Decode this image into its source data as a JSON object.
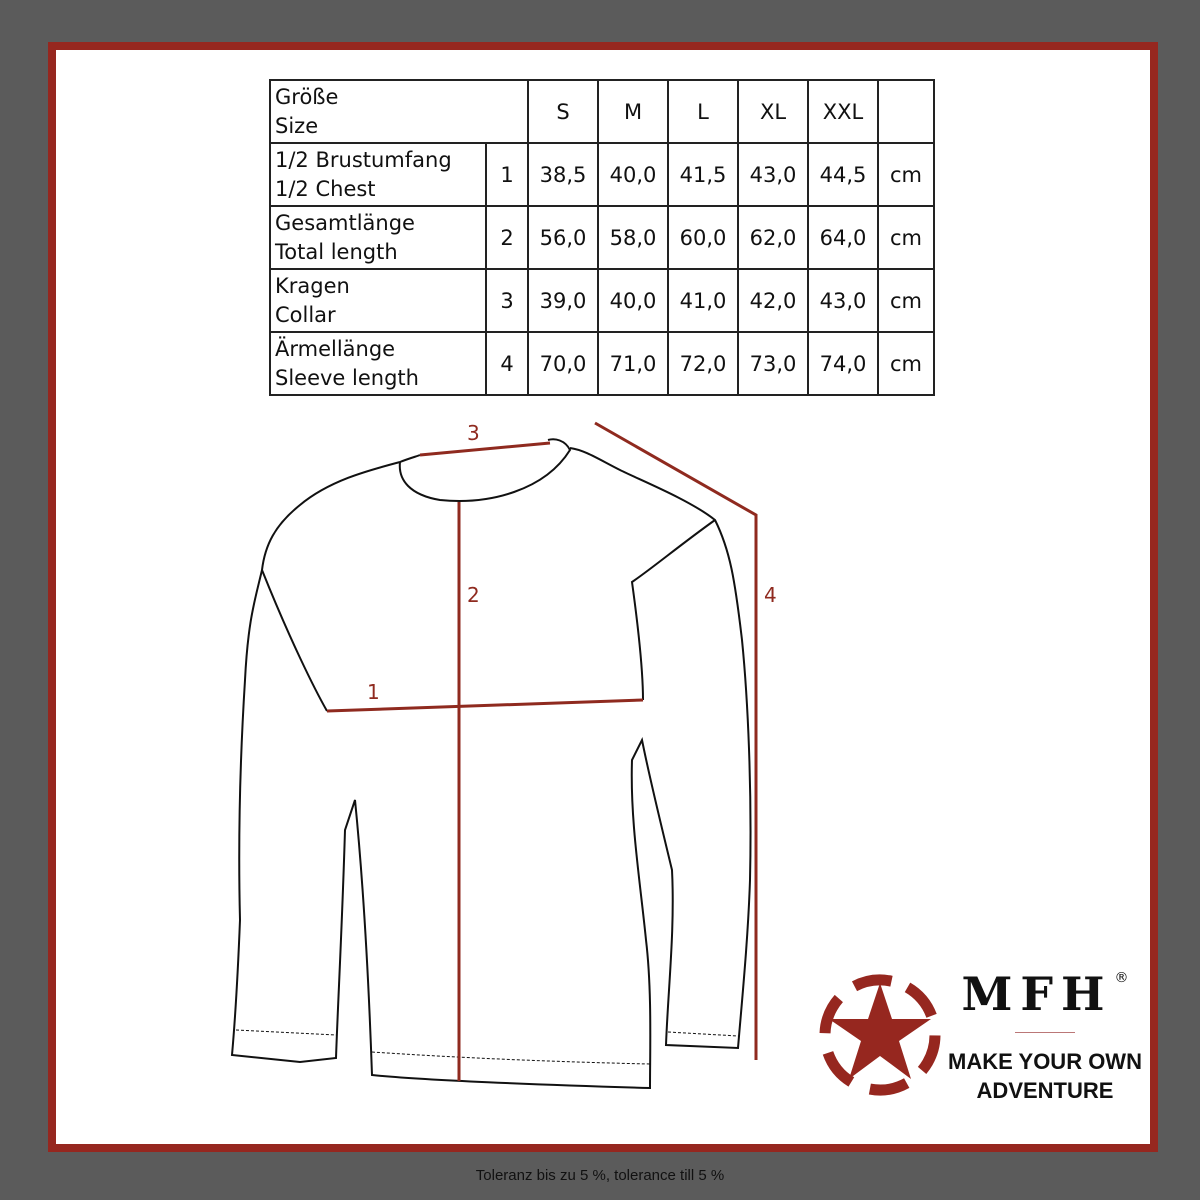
{
  "table": {
    "header": {
      "label_de": "Größe",
      "label_en": "Size",
      "sizes": [
        "S",
        "M",
        "L",
        "XL",
        "XXL"
      ]
    },
    "rows": [
      {
        "label_de": "1/2 Brustumfang",
        "label_en": "1/2 Chest",
        "num": "1",
        "values": [
          "38,5",
          "40,0",
          "41,5",
          "43,0",
          "44,5"
        ],
        "unit": "cm"
      },
      {
        "label_de": "Gesamtlänge",
        "label_en": "Total length",
        "num": "2",
        "values": [
          "56,0",
          "58,0",
          "60,0",
          "62,0",
          "64,0"
        ],
        "unit": "cm"
      },
      {
        "label_de": "Kragen",
        "label_en": "Collar",
        "num": "3",
        "values": [
          "39,0",
          "40,0",
          "41,0",
          "42,0",
          "43,0"
        ],
        "unit": "cm"
      },
      {
        "label_de": "Ärmellänge",
        "label_en": "Sleeve length",
        "num": "4",
        "values": [
          "70,0",
          "71,0",
          "72,0",
          "73,0",
          "74,0"
        ],
        "unit": "cm"
      }
    ]
  },
  "diagram": {
    "labels": [
      "1",
      "2",
      "3",
      "4"
    ],
    "line_color": "#8f2a1f"
  },
  "brand": {
    "name": "MFH",
    "registered": "®",
    "slogan_line1": "MAKE YOUR OWN",
    "slogan_line2": "ADVENTURE",
    "color": "#96271f"
  },
  "footer": "Toleranz bis zu 5 %, tolerance till 5 %"
}
